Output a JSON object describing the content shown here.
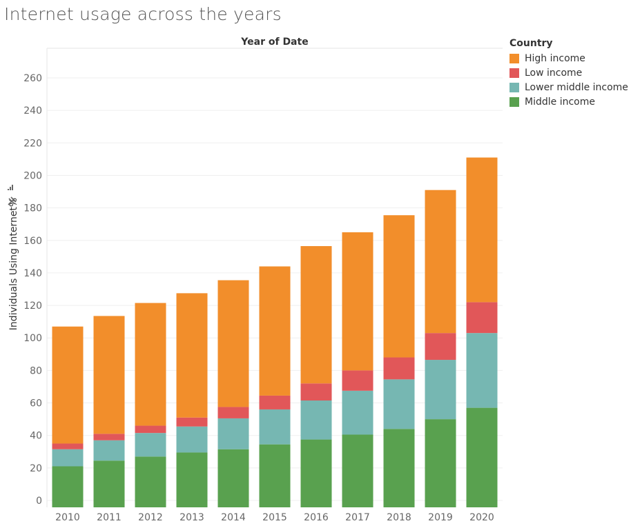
{
  "page_title": "Internet usage across the years",
  "chart_data": {
    "type": "bar",
    "stacked": true,
    "column_header": "Year of Date",
    "ylabel": "Individuals Using Internet%",
    "categories": [
      "2010",
      "2011",
      "2012",
      "2013",
      "2014",
      "2015",
      "2016",
      "2017",
      "2018",
      "2019",
      "2020"
    ],
    "series": [
      {
        "name": "Middle income",
        "color": "#59a14f",
        "values": [
          21,
          24.5,
          27,
          29.5,
          31.5,
          34.5,
          37.5,
          40.5,
          44,
          50,
          57
        ]
      },
      {
        "name": "Lower middle income",
        "color": "#76b7b2",
        "values": [
          10.5,
          12.5,
          14.5,
          16,
          19,
          21.5,
          24,
          27,
          30.5,
          36.5,
          46
        ]
      },
      {
        "name": "Low income",
        "color": "#e15759",
        "values": [
          3.5,
          4,
          4.5,
          5.5,
          7,
          8.5,
          10.5,
          12.5,
          13.5,
          16.5,
          19
        ]
      },
      {
        "name": "High income",
        "color": "#f28e2b",
        "values": [
          72,
          72.5,
          75.5,
          76.5,
          78,
          79.5,
          84.5,
          85,
          87.5,
          88,
          89
        ]
      }
    ],
    "yticks": [
      0,
      20,
      40,
      60,
      80,
      100,
      120,
      140,
      160,
      180,
      200,
      220,
      240,
      260
    ],
    "ylim": [
      0,
      275
    ],
    "grid": "horizontal",
    "legend": {
      "title": "Country",
      "position": "right",
      "order": [
        "High income",
        "Low income",
        "Lower middle income",
        "Middle income"
      ]
    }
  }
}
